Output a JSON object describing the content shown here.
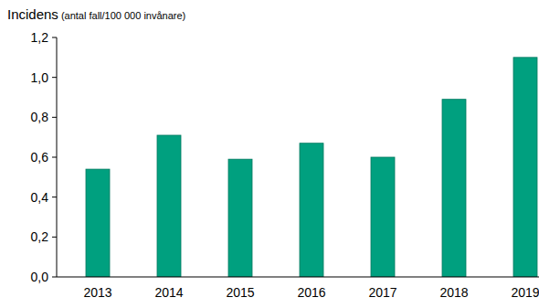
{
  "chart_data": {
    "type": "bar",
    "title": "Incidens",
    "subtitle": "(antal fall/100 000 invånare)",
    "categories": [
      "2013",
      "2014",
      "2015",
      "2016",
      "2017",
      "2018",
      "2019"
    ],
    "values": [
      0.54,
      0.71,
      0.59,
      0.67,
      0.6,
      0.89,
      1.1
    ],
    "color": "#00a07f",
    "ylim": [
      0,
      1.2
    ],
    "yticks": [
      {
        "value": 0,
        "label": "0,0"
      },
      {
        "value": 0.2,
        "label": "0,2"
      },
      {
        "value": 0.4,
        "label": "0,4"
      },
      {
        "value": 0.6,
        "label": "0,6"
      },
      {
        "value": 0.8,
        "label": "0,8"
      },
      {
        "value": 1.0,
        "label": "1,0"
      },
      {
        "value": 1.2,
        "label": "1,2"
      }
    ],
    "grid": false
  }
}
